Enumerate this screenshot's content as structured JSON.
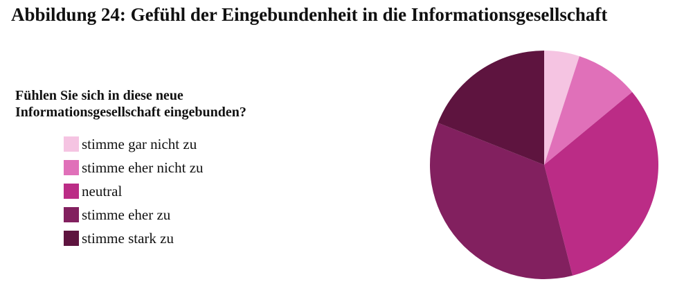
{
  "chart_data": {
    "type": "pie",
    "title": "Abbildung 24: Gefühl der Eingebundenheit in die Informationsgesellschaft",
    "legend_title": "Fühlen Sie sich in diese neue Informationsgesellschaft eingebunden?",
    "categories": [
      "stimme gar nicht zu",
      "stimme eher nicht zu",
      "neutral",
      "stimme eher zu",
      "stimme stark zu"
    ],
    "values": [
      5,
      9,
      32,
      35,
      19
    ],
    "colors": [
      "#f5c4e2",
      "#e070b9",
      "#bb2c86",
      "#82205f",
      "#5e143f"
    ]
  }
}
